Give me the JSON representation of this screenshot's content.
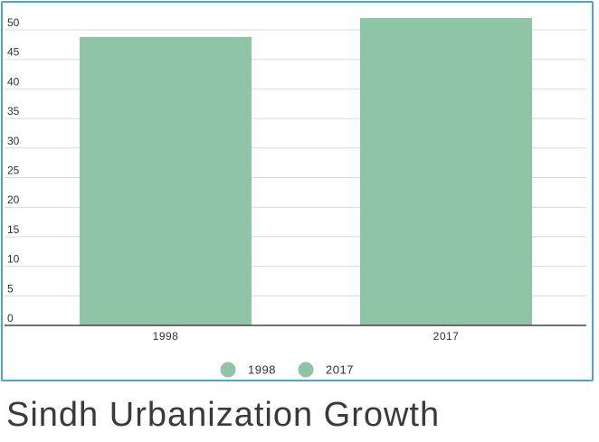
{
  "page_title": "Sindh Urbanization Growth",
  "chart_data": {
    "type": "bar",
    "categories": [
      "1998",
      "2017"
    ],
    "values": [
      48.8,
      52
    ],
    "ylim": [
      0,
      50
    ],
    "yticks": [
      0,
      5,
      10,
      15,
      20,
      25,
      30,
      35,
      40,
      45,
      50
    ],
    "grid": true,
    "legend": {
      "placement": "bottom",
      "entries": [
        "1998",
        "2017"
      ]
    },
    "colors": {
      "bar": "#8fc4a7",
      "grid": "#d9d9d9",
      "axis": "#444444",
      "frame": "#4aa3d9"
    }
  }
}
